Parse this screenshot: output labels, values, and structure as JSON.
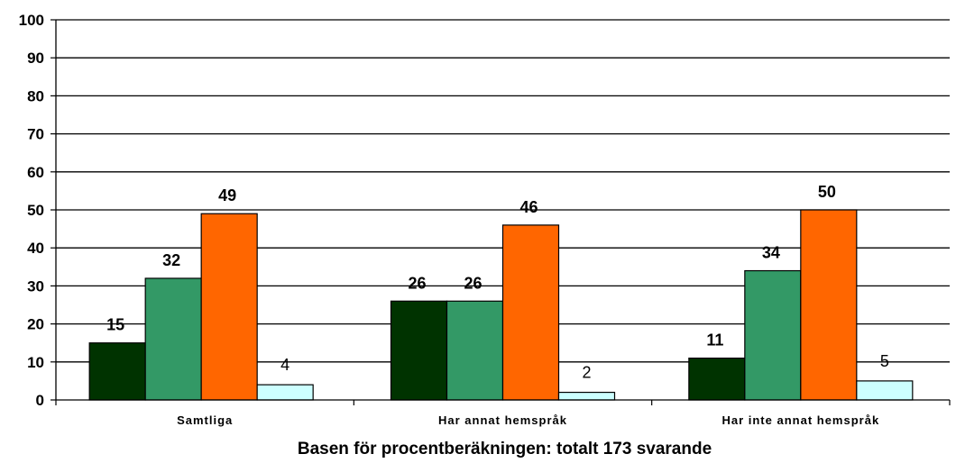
{
  "chart_data": {
    "type": "bar",
    "categories": [
      "Samtliga",
      "Har annat hemspråk",
      "Har inte annat hemspråk"
    ],
    "series": [
      {
        "values": [
          15,
          26,
          11
        ],
        "color": "#003300"
      },
      {
        "values": [
          32,
          26,
          34
        ],
        "color": "#339966"
      },
      {
        "values": [
          49,
          46,
          50
        ],
        "color": "#FF6600"
      },
      {
        "values": [
          4,
          2,
          5
        ],
        "color": "#CCFFFF"
      }
    ],
    "title": "",
    "xlabel": "Basen för procentberäkningen: totalt 173 svarande",
    "ylabel": "",
    "ylim": [
      0,
      100
    ],
    "yticks": [
      "0",
      "10",
      "20",
      "30",
      "40",
      "50",
      "60",
      "70",
      "80",
      "90",
      "100"
    ],
    "grid": true,
    "legend": "none"
  }
}
